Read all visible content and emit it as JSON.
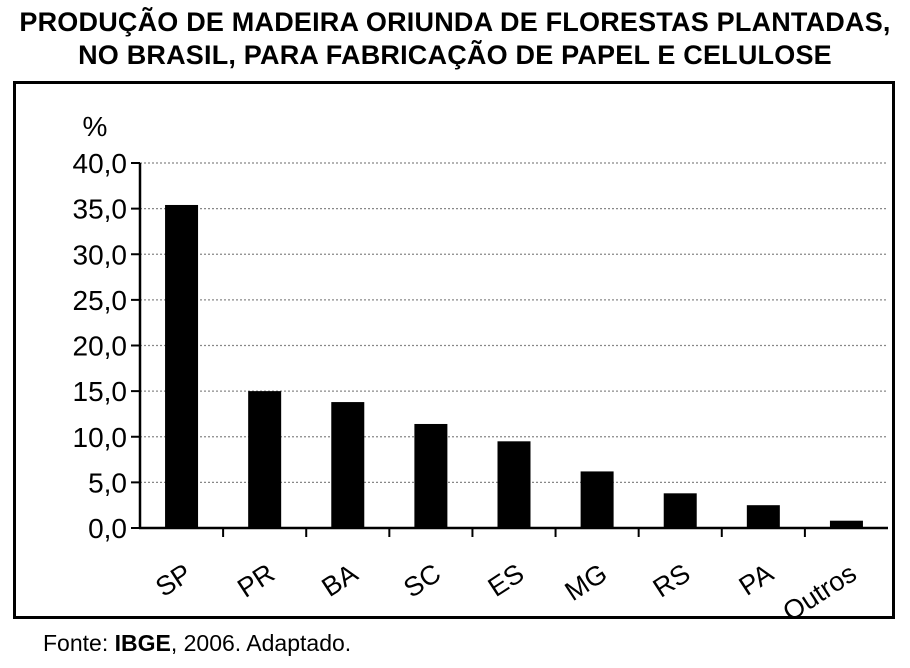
{
  "chart_data": {
    "type": "bar",
    "title_line1": "PRODUÇÃO DE MADEIRA ORIUNDA DE FLORESTAS PLANTADAS,",
    "title_line2": "NO BRASIL, PARA FABRICAÇÃO DE PAPEL E CELULOSE",
    "ylabel": "%",
    "xlabel": "",
    "categories": [
      "SP",
      "PR",
      "BA",
      "SC",
      "ES",
      "MG",
      "RS",
      "PA",
      "Outros"
    ],
    "values": [
      35.4,
      15.0,
      13.8,
      11.4,
      9.5,
      6.2,
      3.8,
      2.5,
      0.8
    ],
    "ylim": [
      0,
      40
    ],
    "yticks": [
      "0,0",
      "5,0",
      "10,0",
      "15,0",
      "20,0",
      "25,0",
      "30,0",
      "35,0",
      "40,0"
    ],
    "grid": true,
    "bar_color": "#000000",
    "grid_color": "#888888"
  },
  "source": {
    "prefix": "Fonte: ",
    "org": "IBGE",
    "suffix": ", 2006. Adaptado."
  }
}
